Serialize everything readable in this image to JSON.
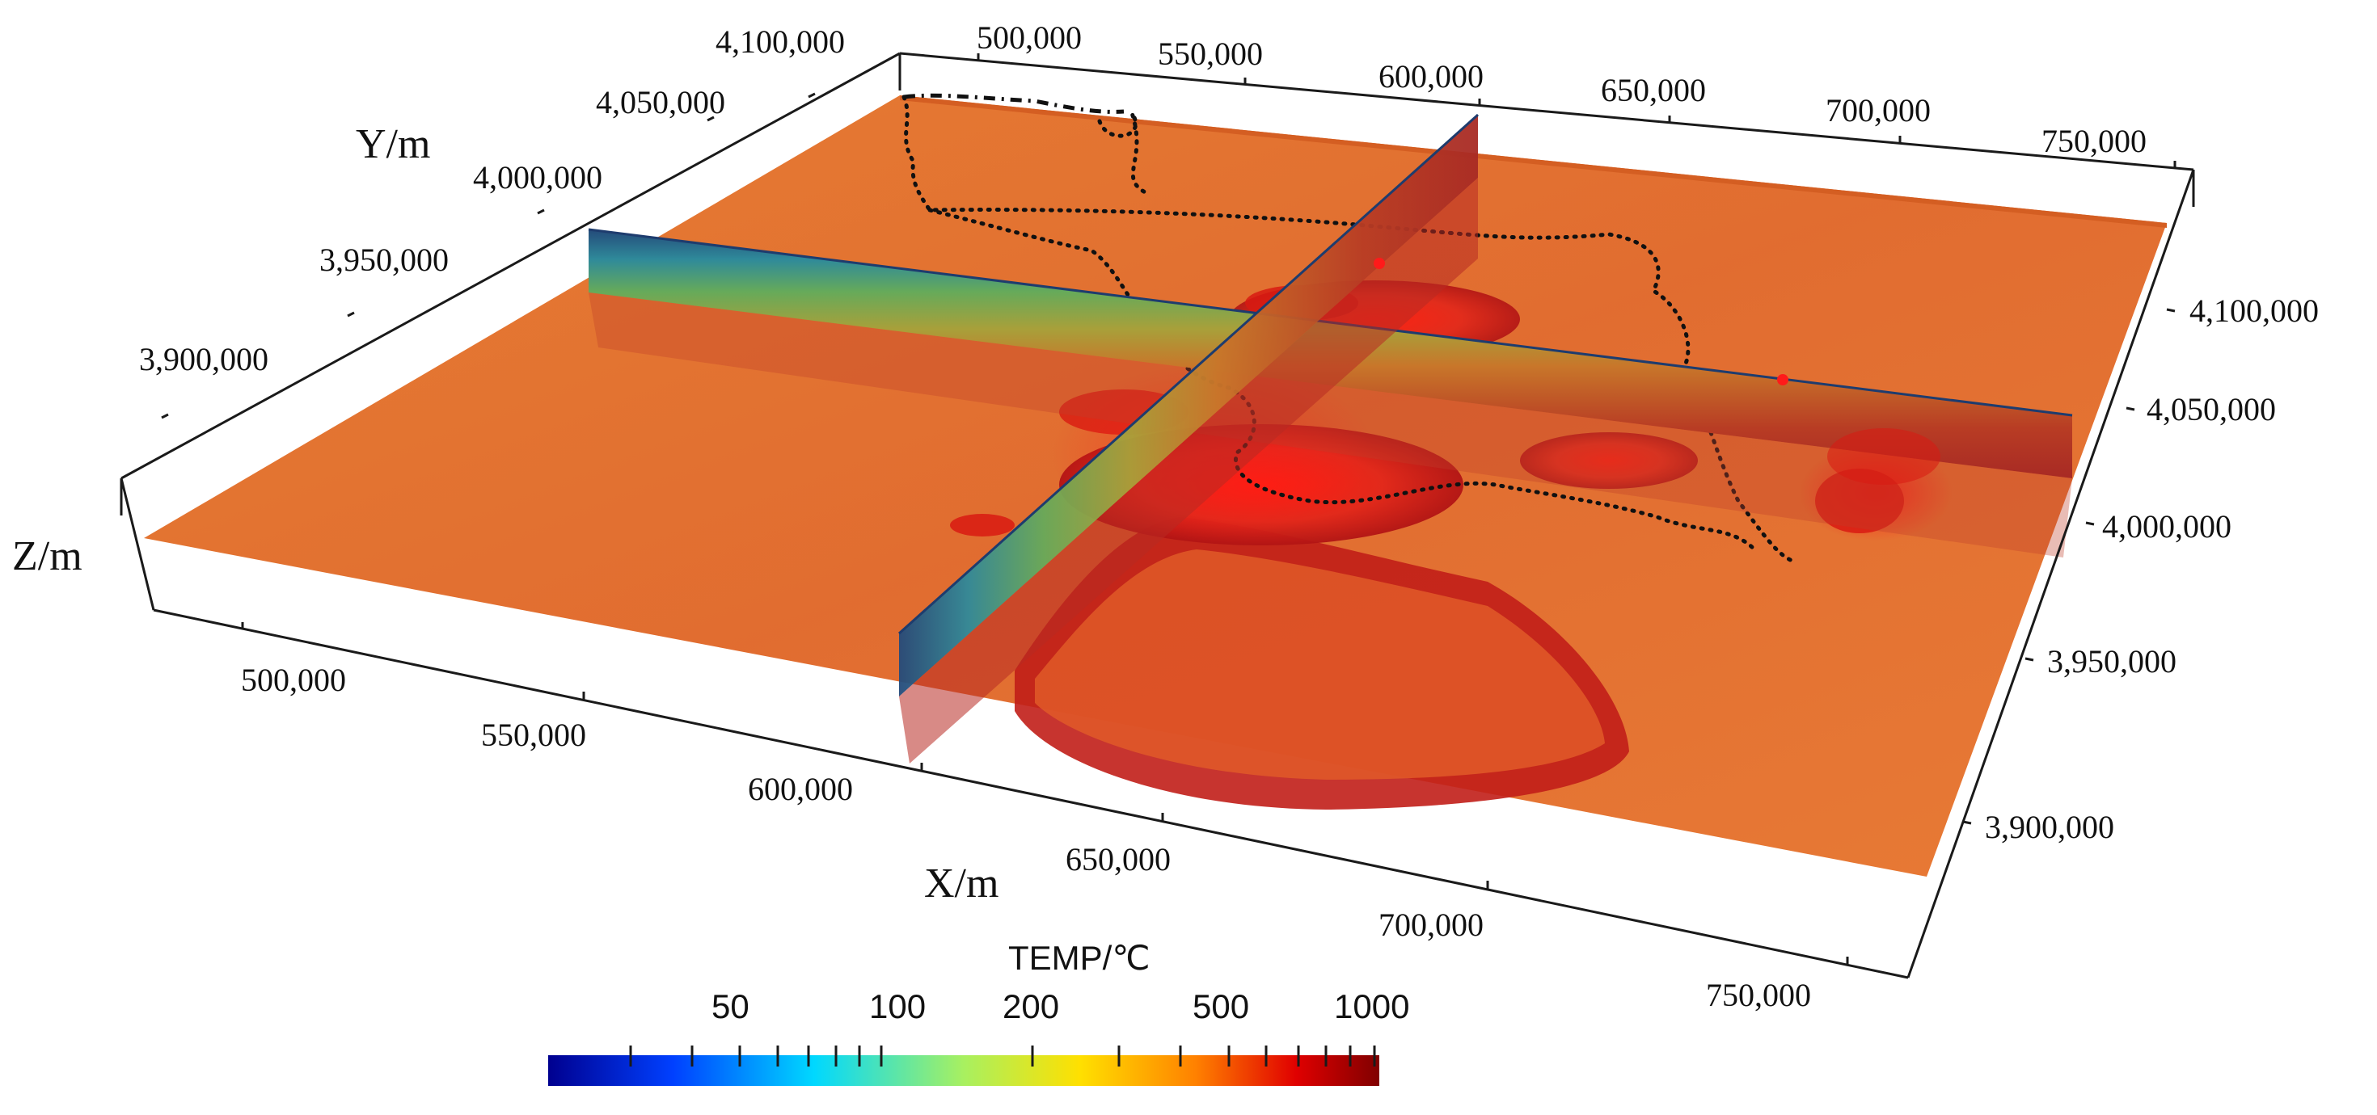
{
  "figure": {
    "axes": {
      "x": {
        "title": "X/m",
        "ticks": [
          "500,000",
          "550,000",
          "600,000",
          "650,000",
          "700,000",
          "750,000"
        ]
      },
      "x_top": {
        "ticks": [
          "500,000",
          "550,000",
          "600,000",
          "650,000",
          "700,000",
          "750,000"
        ]
      },
      "y": {
        "title": "Y/m",
        "ticks": [
          "3,900,000",
          "3,950,000",
          "4,000,000",
          "4,050,000",
          "4,100,000"
        ]
      },
      "y_right": {
        "ticks": [
          "3,900,000",
          "3,950,000",
          "4,000,000",
          "4,050,000",
          "4,100,000"
        ]
      },
      "z": {
        "title": "Z/m"
      }
    },
    "colorbar": {
      "title": "TEMP/℃",
      "labels": [
        "50",
        "100",
        "200",
        "500",
        "1000"
      ],
      "scale": "log",
      "colors": [
        "#00008f",
        "#0060ff",
        "#00e0ff",
        "#a8f060",
        "#ffe000",
        "#ff8000",
        "#e00000",
        "#800000"
      ]
    },
    "colors": {
      "slab": "#e06a28",
      "slab_edge": "#c9521c",
      "anomaly": "#d41414",
      "boundary": "#111111",
      "frame": "#1a1a1a"
    }
  }
}
